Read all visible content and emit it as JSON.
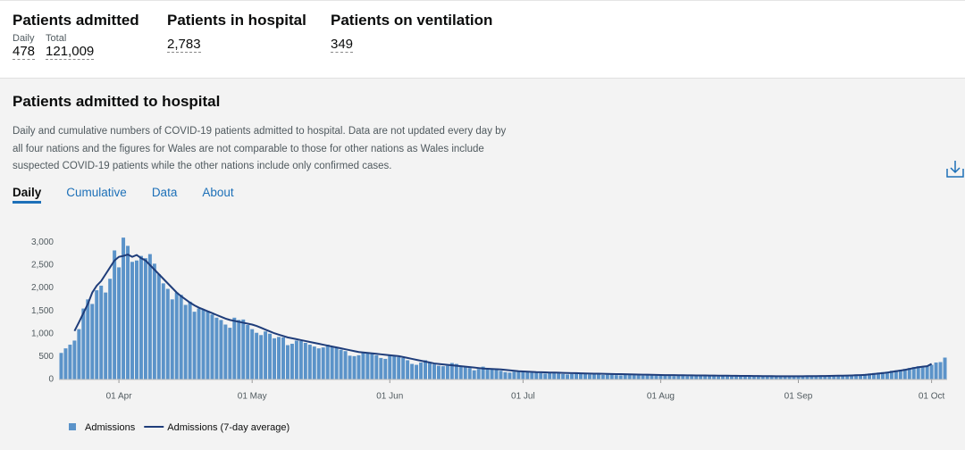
{
  "headline": [
    {
      "title": "Patients admitted",
      "items": [
        {
          "label": "Daily",
          "value": "478"
        },
        {
          "label": "Total",
          "value": "121,009"
        }
      ]
    },
    {
      "title": "Patients in hospital",
      "items": [
        {
          "value": "2,783"
        }
      ]
    },
    {
      "title": "Patients on ventilation",
      "items": [
        {
          "value": "349"
        }
      ]
    }
  ],
  "card": {
    "title": "Patients admitted to hospital",
    "description": [
      "Daily and cumulative numbers of COVID-19 patients admitted to hospital. Data are not updated every day by",
      "all four nations and the figures for Wales are not comparable to those for other nations as Wales include",
      "suspected COVID-19 patients while the other nations include only confirmed cases."
    ],
    "tabs": [
      "Daily",
      "Cumulative",
      "Data",
      "About"
    ]
  },
  "chart_data": {
    "type": "bar",
    "categories": [
      null,
      null,
      null,
      null,
      null,
      null,
      null,
      null,
      null,
      null,
      null,
      null,
      null,
      "01 Apr",
      null,
      null,
      null,
      null,
      null,
      null,
      null,
      null,
      null,
      null,
      null,
      null,
      null,
      null,
      null,
      null,
      null,
      null,
      null,
      null,
      null,
      null,
      null,
      null,
      null,
      null,
      null,
      null,
      null,
      "01 May",
      null,
      null,
      null,
      null,
      null,
      null,
      null,
      null,
      null,
      null,
      null,
      null,
      null,
      null,
      null,
      null,
      null,
      null,
      null,
      null,
      null,
      null,
      null,
      null,
      null,
      null,
      null,
      null,
      null,
      null,
      "01 Jun",
      null,
      null,
      null,
      null,
      null,
      null,
      null,
      null,
      null,
      null,
      null,
      null,
      null,
      null,
      null,
      null,
      null,
      null,
      null,
      null,
      null,
      null,
      null,
      null,
      null,
      null,
      null,
      null,
      null,
      "01 Jul",
      null,
      null,
      null,
      null,
      null,
      null,
      null,
      null,
      null,
      null,
      null,
      null,
      null,
      null,
      null,
      null,
      null,
      null,
      null,
      null,
      null,
      null,
      null,
      null,
      null,
      null,
      null,
      null,
      null,
      null,
      "01 Aug",
      null,
      null,
      null,
      null,
      null,
      null,
      null,
      null,
      null,
      null,
      null,
      null,
      null,
      null,
      null,
      null,
      null,
      null,
      null,
      null,
      null,
      null,
      null,
      null,
      null,
      null,
      null,
      null,
      null,
      null,
      "01 Sep",
      null,
      null,
      null,
      null,
      null,
      null,
      null,
      null,
      null,
      null,
      null,
      null,
      null,
      null,
      null,
      null,
      null,
      null,
      null,
      null,
      null,
      null,
      null,
      null,
      null,
      null,
      null,
      null,
      null,
      "01 Oct",
      null,
      null,
      null
    ],
    "series": [
      {
        "name": "Admissions",
        "color": "#5b93c9",
        "values": [
          580,
          680,
          760,
          850,
          1100,
          1550,
          1750,
          1650,
          1950,
          2050,
          1900,
          2200,
          2820,
          2450,
          3100,
          2920,
          2570,
          2600,
          2700,
          2650,
          2740,
          2530,
          2300,
          2100,
          1980,
          1750,
          1900,
          1850,
          1630,
          1700,
          1480,
          1550,
          1530,
          1500,
          1420,
          1350,
          1300,
          1200,
          1130,
          1350,
          1300,
          1310,
          1190,
          1100,
          1020,
          970,
          1050,
          1000,
          900,
          930,
          920,
          750,
          780,
          850,
          840,
          800,
          760,
          720,
          680,
          700,
          760,
          730,
          700,
          650,
          620,
          520,
          510,
          530,
          600,
          570,
          560,
          530,
          470,
          450,
          520,
          530,
          490,
          470,
          420,
          340,
          320,
          370,
          420,
          380,
          330,
          300,
          290,
          300,
          360,
          340,
          290,
          270,
          250,
          200,
          230,
          280,
          250,
          230,
          240,
          190,
          160,
          150,
          170,
          180,
          170,
          160,
          150,
          165,
          140,
          130,
          150,
          145,
          135,
          120,
          110,
          120,
          140,
          130,
          120,
          110,
          115,
          120,
          100,
          105,
          110,
          95,
          90,
          100,
          105,
          95,
          90,
          85,
          95,
          90,
          85,
          85,
          80,
          90,
          75,
          80,
          85,
          70,
          75,
          80,
          70,
          75,
          80,
          70,
          65,
          75,
          70,
          65,
          70,
          75,
          65,
          60,
          70,
          65,
          60,
          65,
          70,
          60,
          55,
          65,
          60,
          65,
          60,
          65,
          70,
          60,
          65,
          70,
          75,
          80,
          70,
          85,
          90,
          95,
          100,
          110,
          105,
          120,
          130,
          140,
          150,
          160,
          170,
          190,
          200,
          210,
          230,
          250,
          270,
          290,
          280,
          300,
          320,
          370,
          380,
          478
        ]
      },
      {
        "name": "Admissions (7-day average)",
        "type": "line",
        "color": "#1f3d7a",
        "values": [
          null,
          null,
          null,
          1060,
          1250,
          1450,
          1650,
          1900,
          2050,
          2150,
          2300,
          2450,
          2600,
          2680,
          2700,
          2730,
          2680,
          2720,
          2650,
          2600,
          2500,
          2400,
          2300,
          2200,
          2100,
          2000,
          1900,
          1820,
          1750,
          1680,
          1620,
          1570,
          1530,
          1490,
          1450,
          1410,
          1370,
          1330,
          1300,
          1280,
          1260,
          1240,
          1220,
          1200,
          1170,
          1130,
          1090,
          1050,
          1010,
          980,
          950,
          920,
          900,
          880,
          860,
          840,
          820,
          800,
          780,
          760,
          740,
          720,
          700,
          680,
          660,
          640,
          620,
          600,
          590,
          580,
          570,
          560,
          550,
          540,
          530,
          520,
          510,
          490,
          470,
          450,
          430,
          410,
          390,
          370,
          350,
          340,
          330,
          320,
          310,
          300,
          290,
          280,
          270,
          260,
          250,
          240,
          235,
          230,
          225,
          220,
          210,
          200,
          190,
          180,
          175,
          170,
          165,
          160,
          158,
          155,
          152,
          150,
          148,
          145,
          142,
          140,
          138,
          135,
          132,
          130,
          128,
          126,
          124,
          122,
          120,
          118,
          116,
          114,
          112,
          110,
          108,
          106,
          104,
          102,
          100,
          98,
          96,
          95,
          94,
          93,
          92,
          91,
          90,
          89,
          88,
          87,
          86,
          85,
          84,
          83,
          82,
          81,
          80,
          79,
          78,
          77,
          76,
          75,
          74,
          73,
          72,
          71,
          70,
          70,
          70,
          70,
          70,
          71,
          72,
          73,
          74,
          75,
          76,
          78,
          80,
          82,
          84,
          86,
          88,
          92,
          96,
          100,
          110,
          120,
          130,
          140,
          150,
          165,
          180,
          195,
          210,
          230,
          250,
          265,
          280,
          290,
          340,
          null,
          null,
          null
        ]
      }
    ],
    "ylim": [
      0,
      3200
    ],
    "yticks": [
      0,
      500,
      {
        "value": 1000,
        "label": "1,000"
      },
      {
        "value": 1500,
        "label": "1,500"
      },
      {
        "value": 2000,
        "label": "2,000"
      },
      {
        "value": 2500,
        "label": "2,500"
      },
      {
        "value": 3000,
        "label": "3,000"
      }
    ],
    "grid": false
  }
}
